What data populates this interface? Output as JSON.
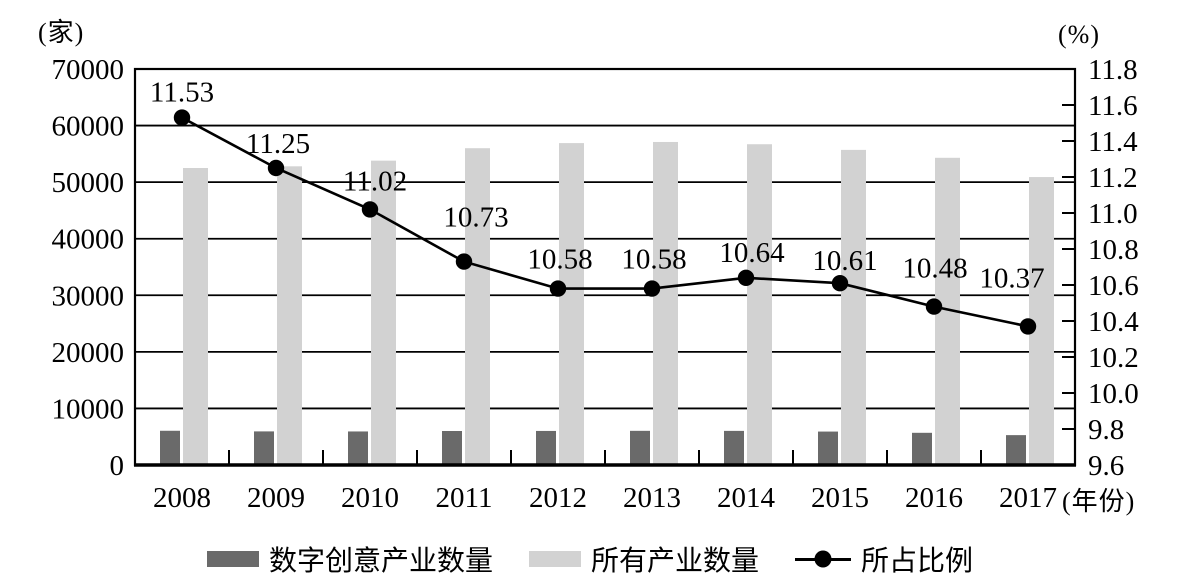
{
  "figure": {
    "left_axis_unit": "(家)",
    "right_axis_unit": "(%)",
    "x_axis_unit": "(年份)"
  },
  "legend": {
    "items": [
      {
        "label": "数字创意产业数量",
        "type": "bar",
        "color": "#6a6a6a"
      },
      {
        "label": "所有产业数量",
        "type": "bar",
        "color": "#d2d2d2"
      },
      {
        "label": "所占比例",
        "type": "line",
        "color": "#000000"
      }
    ]
  },
  "chart_data": {
    "type": "bar",
    "subtype": "grouped-bars-with-line-overlay",
    "categories": [
      "2008",
      "2009",
      "2010",
      "2011",
      "2012",
      "2013",
      "2014",
      "2015",
      "2016",
      "2017"
    ],
    "series": [
      {
        "name": "数字创意产业数量",
        "type": "bar",
        "axis": "left",
        "color": "#6a6a6a",
        "values": [
          6050,
          5940,
          5930,
          6010,
          6020,
          6040,
          6030,
          5910,
          5690,
          5280
        ]
      },
      {
        "name": "所有产业数量",
        "type": "bar",
        "axis": "left",
        "color": "#d2d2d2",
        "values": [
          52500,
          52800,
          53800,
          56000,
          56900,
          57100,
          56700,
          55700,
          54300,
          50900
        ]
      },
      {
        "name": "所占比例",
        "type": "line",
        "axis": "right",
        "color": "#000000",
        "values": [
          11.53,
          11.25,
          11.02,
          10.73,
          10.58,
          10.58,
          10.64,
          10.61,
          10.48,
          10.37
        ],
        "data_labels": [
          "11.53",
          "11.25",
          "11.02",
          "10.73",
          "10.58",
          "10.58",
          "10.64",
          "10.61",
          "10.48",
          "10.37"
        ]
      }
    ],
    "left_axis": {
      "label": "(家)",
      "min": 0,
      "max": 70000,
      "tick_step": 10000,
      "ticks": [
        "70000",
        "60000",
        "50000",
        "40000",
        "30000",
        "20000",
        "10000",
        "0"
      ]
    },
    "right_axis": {
      "label": "(%)",
      "min": 9.6,
      "max": 11.8,
      "tick_step": 0.2,
      "ticks": [
        "11.8",
        "11.6",
        "11.4",
        "11.2",
        "11.0",
        "10.8",
        "10.6",
        "10.4",
        "10.2",
        "10.0",
        "9.8",
        "9.6"
      ]
    },
    "x_axis": {
      "label": "(年份)",
      "categories": [
        "2008",
        "2009",
        "2010",
        "2011",
        "2012",
        "2013",
        "2014",
        "2015",
        "2016",
        "2017"
      ]
    },
    "grid": "horizontal",
    "legend_position": "bottom",
    "label_offsets": {
      "dx": [
        0,
        2,
        5,
        12,
        2,
        2,
        6,
        5,
        1,
        -16
      ],
      "dy": [
        -16,
        -15,
        -19,
        -35,
        -20,
        -20,
        -16,
        -13,
        -29,
        -39
      ]
    }
  }
}
